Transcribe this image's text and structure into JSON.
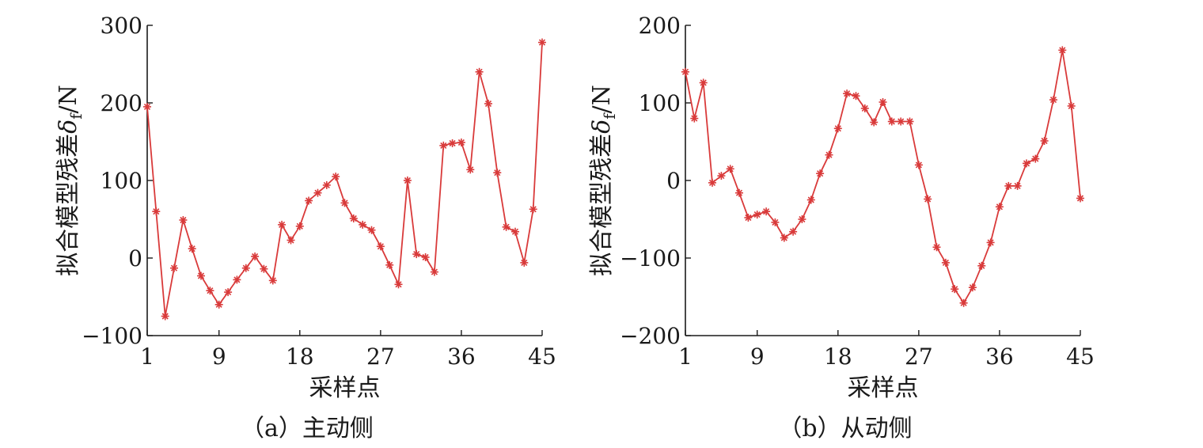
{
  "chart_data": [
    {
      "type": "line",
      "caption": "（a）主动侧",
      "xlabel": "采样点",
      "ylabel": "拟合模型残差",
      "ylabel_symbol": "δ",
      "ylabel_subscript": "f",
      "ylabel_unit": "/N",
      "xlim": [
        1,
        45
      ],
      "ylim": [
        -100,
        300
      ],
      "xticks": [
        1,
        9,
        18,
        27,
        36,
        45
      ],
      "yticks": [
        -100,
        0,
        100,
        200,
        300
      ],
      "ytick_labels": [
        "−100",
        "0",
        "100",
        "200",
        "300"
      ],
      "grid": false,
      "marker": "asterisk",
      "color": "#d93a3a",
      "series": [
        {
          "x": [
            1,
            2,
            3,
            4,
            5,
            6,
            7,
            8,
            9,
            10,
            11,
            12,
            13,
            14,
            15,
            16,
            17,
            18,
            19,
            20,
            21,
            22,
            23,
            24,
            25,
            26,
            27,
            28,
            29,
            30,
            31,
            32,
            33,
            34,
            35,
            36,
            37,
            38,
            39,
            40,
            41,
            42,
            43,
            44,
            45
          ],
          "values": [
            195,
            60,
            -75,
            -13,
            49,
            12,
            -23,
            -42,
            -60,
            -44,
            -28,
            -13,
            2,
            -14,
            -29,
            43,
            23,
            41,
            74,
            84,
            94,
            105,
            71,
            51,
            43,
            36,
            15,
            -9,
            -34,
            100,
            5,
            1,
            -18,
            145,
            148,
            149,
            114,
            240,
            199,
            110,
            40,
            34,
            -6,
            63,
            278
          ]
        }
      ]
    },
    {
      "type": "line",
      "caption": "（b）从动侧",
      "xlabel": "采样点",
      "ylabel": "拟合模型残差",
      "ylabel_symbol": "δ",
      "ylabel_subscript": "f",
      "ylabel_unit": "/N",
      "xlim": [
        1,
        45
      ],
      "ylim": [
        -200,
        200
      ],
      "xticks": [
        1,
        9,
        18,
        27,
        36,
        45
      ],
      "yticks": [
        -200,
        -100,
        0,
        100,
        200
      ],
      "ytick_labels": [
        "−200",
        "−100",
        "0",
        "100",
        "200"
      ],
      "grid": false,
      "marker": "asterisk",
      "color": "#d93a3a",
      "series": [
        {
          "x": [
            1,
            2,
            3,
            4,
            5,
            6,
            7,
            8,
            9,
            10,
            11,
            12,
            13,
            14,
            15,
            16,
            17,
            18,
            19,
            20,
            21,
            22,
            23,
            24,
            25,
            26,
            27,
            28,
            29,
            30,
            31,
            32,
            33,
            34,
            35,
            36,
            37,
            38,
            39,
            40,
            41,
            42,
            43,
            44,
            45
          ],
          "values": [
            140,
            80,
            126,
            -3,
            6,
            15,
            -16,
            -48,
            -44,
            -40,
            -54,
            -74,
            -66,
            -50,
            -25,
            9,
            33,
            67,
            112,
            109,
            93,
            75,
            101,
            76,
            76,
            76,
            20,
            -24,
            -86,
            -106,
            -140,
            -158,
            -138,
            -110,
            -80,
            -34,
            -7,
            -7,
            22,
            28,
            51,
            104,
            168,
            96,
            -23
          ]
        }
      ]
    }
  ]
}
